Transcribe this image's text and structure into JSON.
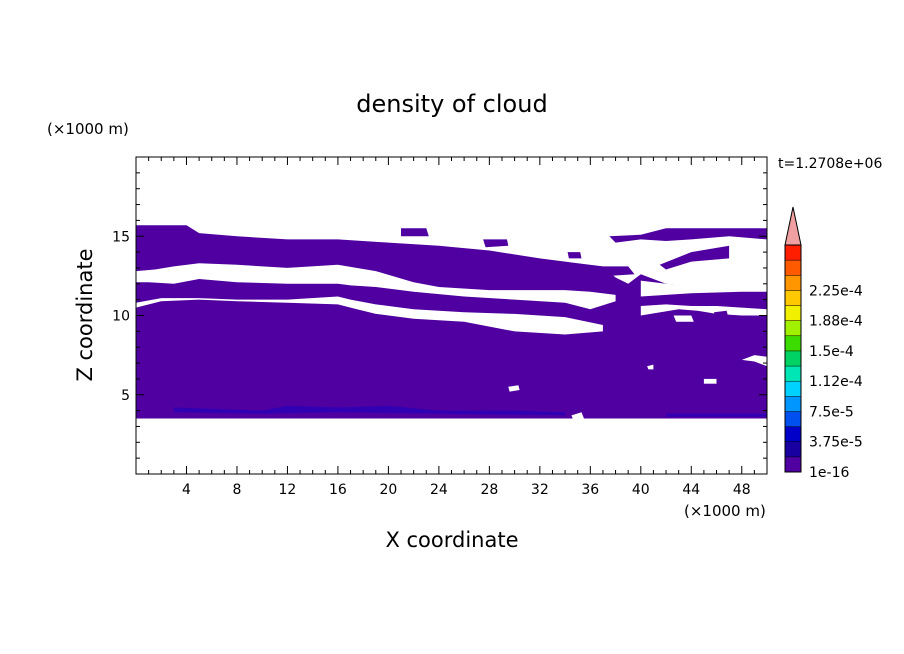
{
  "chart_data": {
    "type": "heatmap",
    "title": "density of cloud",
    "xlabel": "X coordinate",
    "ylabel": "Z coordinate",
    "x_unit": "(×1000 m)",
    "y_unit": "(×1000 m)",
    "time_label": "t=1.2708e+06",
    "xlim": [
      0,
      50
    ],
    "ylim": [
      0,
      20
    ],
    "x_ticks": [
      4,
      8,
      12,
      16,
      20,
      24,
      28,
      32,
      36,
      40,
      44,
      48
    ],
    "y_ticks": [
      5,
      10,
      15
    ],
    "fill_color": "#5000a0",
    "dark_fill_color": "#2a00b8",
    "colorbar": {
      "labels": [
        "1e-16",
        "3.75e-5",
        "7.5e-5",
        "1.12e-4",
        "1.5e-4",
        "1.88e-4",
        "2.25e-4"
      ],
      "colors": [
        "#5000a0",
        "#1800a0",
        "#0000c8",
        "#0050f0",
        "#0096ff",
        "#00d2ff",
        "#00e6b4",
        "#00d264",
        "#3cdc00",
        "#a0f000",
        "#f0f000",
        "#ffc800",
        "#ff9600",
        "#ff5a00",
        "#ff1e00",
        "#f0a0a0"
      ],
      "arrow_color": "#f0a0a0"
    },
    "regions": [
      [
        [
          0,
          15.7
        ],
        [
          4,
          15.7
        ],
        [
          5,
          15.2
        ],
        [
          8,
          15.0
        ],
        [
          12,
          14.8
        ],
        [
          16,
          14.8
        ],
        [
          20,
          14.6
        ],
        [
          24,
          14.4
        ],
        [
          28,
          14.1
        ],
        [
          32,
          13.6
        ],
        [
          35,
          13.3
        ],
        [
          37,
          13.1
        ],
        [
          38,
          12.4
        ],
        [
          39,
          12.0
        ],
        [
          40,
          12.6
        ],
        [
          42,
          12.0
        ],
        [
          45,
          11.8
        ],
        [
          48,
          11.7
        ],
        [
          50,
          11.6
        ],
        [
          50,
          3.5
        ],
        [
          0,
          3.5
        ],
        [
          0,
          5.2
        ],
        [
          0,
          12.4
        ],
        [
          3,
          12.4
        ],
        [
          5,
          12.7
        ],
        [
          8,
          12.5
        ],
        [
          12,
          12.4
        ],
        [
          16,
          12.2
        ],
        [
          17,
          11.6
        ],
        [
          20,
          11.5
        ],
        [
          24,
          11.2
        ],
        [
          28,
          11.0
        ],
        [
          32,
          10.9
        ],
        [
          34,
          10.6
        ],
        [
          36,
          10.0
        ],
        [
          38,
          9.5
        ],
        [
          38.5,
          9.3
        ],
        [
          38,
          8.6
        ],
        [
          34,
          8.4
        ],
        [
          30,
          8.4
        ],
        [
          28,
          8.9
        ],
        [
          24,
          9.2
        ],
        [
          20,
          9.6
        ],
        [
          17,
          10.0
        ],
        [
          16,
          10.3
        ],
        [
          12,
          10.4
        ],
        [
          8,
          10.5
        ],
        [
          4,
          10.6
        ],
        [
          2,
          10.2
        ],
        [
          0,
          10.0
        ],
        [
          0,
          9.6
        ],
        [
          0,
          15.7
        ]
      ]
    ],
    "holes": [
      [
        [
          0,
          12.8
        ],
        [
          1.5,
          12.9
        ],
        [
          3,
          13.1
        ],
        [
          5,
          13.3
        ],
        [
          8,
          13.2
        ],
        [
          12,
          13.0
        ],
        [
          16,
          13.2
        ],
        [
          19,
          12.8
        ],
        [
          22,
          12.1
        ],
        [
          24,
          11.8
        ],
        [
          28,
          11.6
        ],
        [
          32,
          11.6
        ],
        [
          34,
          11.6
        ],
        [
          36,
          11.5
        ],
        [
          38,
          11.3
        ],
        [
          38,
          10.9
        ],
        [
          36,
          10.4
        ],
        [
          34,
          10.8
        ],
        [
          30,
          11.0
        ],
        [
          26,
          11.2
        ],
        [
          22,
          11.5
        ],
        [
          19,
          11.8
        ],
        [
          17,
          11.9
        ],
        [
          16,
          12.0
        ],
        [
          12,
          12.0
        ],
        [
          8,
          12.1
        ],
        [
          5,
          12.3
        ],
        [
          3,
          12.0
        ],
        [
          1,
          12.1
        ],
        [
          0,
          12.1
        ]
      ],
      [
        [
          0,
          10.5
        ],
        [
          2,
          10.9
        ],
        [
          5,
          11.0
        ],
        [
          8,
          10.9
        ],
        [
          12,
          10.8
        ],
        [
          16,
          10.7
        ],
        [
          17.5,
          10.4
        ],
        [
          19,
          10.1
        ],
        [
          22,
          9.8
        ],
        [
          26,
          9.6
        ],
        [
          30,
          9.0
        ],
        [
          34,
          8.8
        ],
        [
          37,
          9.0
        ],
        [
          37,
          9.4
        ],
        [
          34,
          9.9
        ],
        [
          30,
          10.1
        ],
        [
          26,
          10.2
        ],
        [
          22,
          10.4
        ],
        [
          19,
          10.7
        ],
        [
          17,
          11.0
        ],
        [
          16,
          11.2
        ],
        [
          12,
          11.0
        ],
        [
          8,
          11.0
        ],
        [
          5,
          11.1
        ],
        [
          2,
          11.1
        ],
        [
          0,
          10.8
        ]
      ],
      [
        [
          40,
          11.2
        ],
        [
          44,
          11.4
        ],
        [
          48,
          11.5
        ],
        [
          50,
          11.5
        ],
        [
          50,
          11.8
        ],
        [
          48,
          11.9
        ],
        [
          44,
          11.9
        ],
        [
          42,
          12.0
        ],
        [
          40,
          12.2
        ]
      ],
      [
        [
          40,
          10.0
        ],
        [
          43,
          10.4
        ],
        [
          44.5,
          10.3
        ],
        [
          46,
          10.1
        ],
        [
          48,
          10.0
        ],
        [
          50,
          10.0
        ],
        [
          50,
          10.4
        ],
        [
          48,
          10.5
        ],
        [
          46,
          10.6
        ],
        [
          44,
          10.6
        ],
        [
          42,
          10.7
        ],
        [
          40,
          10.6
        ]
      ]
    ],
    "islands": [
      [
        [
          21,
          15.5
        ],
        [
          23,
          15.5
        ],
        [
          23.2,
          15.0
        ],
        [
          21,
          15.0
        ]
      ],
      [
        [
          27.5,
          14.8
        ],
        [
          29.4,
          14.8
        ],
        [
          29.5,
          14.4
        ],
        [
          27.7,
          14.3
        ]
      ],
      [
        [
          34.2,
          14.0
        ],
        [
          35.2,
          14.0
        ],
        [
          35.3,
          13.6
        ],
        [
          34.3,
          13.6
        ]
      ],
      [
        [
          37.5,
          15.0
        ],
        [
          40,
          15.1
        ],
        [
          42,
          15.5
        ],
        [
          50,
          15.5
        ],
        [
          50,
          14.8
        ],
        [
          47,
          15.0
        ],
        [
          44,
          14.8
        ],
        [
          42,
          14.7
        ],
        [
          40,
          14.8
        ],
        [
          38,
          14.6
        ]
      ],
      [
        [
          41.5,
          13.2
        ],
        [
          44,
          14.0
        ],
        [
          47,
          14.4
        ],
        [
          47,
          13.6
        ],
        [
          44,
          13.4
        ],
        [
          42,
          12.9
        ]
      ],
      [
        [
          37,
          13.1
        ],
        [
          39,
          13.1
        ],
        [
          39.5,
          12.6
        ],
        [
          37.5,
          12.5
        ]
      ],
      [
        [
          45.8,
          10.2
        ],
        [
          46.8,
          10.3
        ],
        [
          47.0,
          9.7
        ],
        [
          46.0,
          9.6
        ]
      ]
    ],
    "gaps": [
      [
        [
          42.6,
          10.0
        ],
        [
          44.0,
          10.0
        ],
        [
          44.2,
          9.6
        ],
        [
          42.8,
          9.6
        ]
      ],
      [
        [
          29.5,
          5.5
        ],
        [
          30.3,
          5.6
        ],
        [
          30.4,
          5.3
        ],
        [
          29.6,
          5.2
        ]
      ],
      [
        [
          45.0,
          6.0
        ],
        [
          46.0,
          6.0
        ],
        [
          46.0,
          5.7
        ],
        [
          45.0,
          5.7
        ]
      ],
      [
        [
          48.0,
          7.2
        ],
        [
          49.0,
          7.1
        ],
        [
          50,
          6.8
        ],
        [
          50,
          7.4
        ],
        [
          49.0,
          7.5
        ]
      ],
      [
        [
          40.5,
          6.8
        ],
        [
          41.0,
          6.9
        ],
        [
          41.0,
          6.6
        ],
        [
          40.6,
          6.6
        ]
      ],
      [
        [
          34.5,
          3.7
        ],
        [
          35.3,
          3.9
        ],
        [
          35.5,
          3.5
        ],
        [
          34.6,
          3.5
        ]
      ]
    ],
    "dark_strips": [
      [
        [
          3,
          4.2
        ],
        [
          10,
          4.0
        ],
        [
          12,
          4.3
        ],
        [
          16,
          4.2
        ],
        [
          20,
          4.3
        ],
        [
          24,
          4.0
        ],
        [
          30,
          4.0
        ],
        [
          34,
          3.9
        ],
        [
          34,
          3.7
        ],
        [
          24,
          3.8
        ],
        [
          16,
          3.9
        ],
        [
          10,
          3.8
        ],
        [
          3,
          3.9
        ]
      ],
      [
        [
          42,
          3.8
        ],
        [
          50,
          3.8
        ],
        [
          50,
          3.6
        ],
        [
          42,
          3.6
        ]
      ]
    ]
  }
}
